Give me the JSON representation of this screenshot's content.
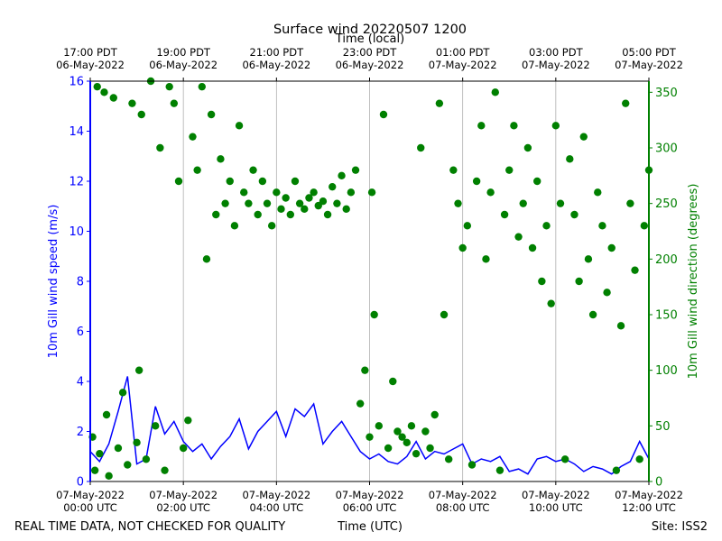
{
  "chart_data": {
    "type": "line",
    "title": "Surface wind 20220507 1200",
    "x2label": "Time (local)",
    "xlabel": "Time (UTC)",
    "ylabel": "10m Gill wind speed (m/s)",
    "y2label": "10m Gill wind direction (degrees)",
    "footer_left": "REAL TIME DATA, NOT CHECKED FOR QUALITY",
    "footer_right": "Site: ISS2",
    "xlim": [
      0,
      12
    ],
    "xticks": [
      {
        "value": 0,
        "label": "07-May-2022\n00:00 UTC"
      },
      {
        "value": 2,
        "label": "07-May-2022\n02:00 UTC"
      },
      {
        "value": 4,
        "label": "07-May-2022\n04:00 UTC"
      },
      {
        "value": 6,
        "label": "07-May-2022\n06:00 UTC"
      },
      {
        "value": 8,
        "label": "07-May-2022\n08:00 UTC"
      },
      {
        "value": 10,
        "label": "07-May-2022\n10:00 UTC"
      },
      {
        "value": 12,
        "label": "07-May-2022\n12:00 UTC"
      }
    ],
    "x2ticks": [
      {
        "value": 0,
        "label": "17:00 PDT\n06-May-2022"
      },
      {
        "value": 2,
        "label": "19:00 PDT\n06-May-2022"
      },
      {
        "value": 4,
        "label": "21:00 PDT\n06-May-2022"
      },
      {
        "value": 6,
        "label": "23:00 PDT\n06-May-2022"
      },
      {
        "value": 8,
        "label": "01:00 PDT\n07-May-2022"
      },
      {
        "value": 10,
        "label": "03:00 PDT\n07-May-2022"
      },
      {
        "value": 12,
        "label": "05:00 PDT\n07-May-2022"
      }
    ],
    "ylim": [
      0,
      16
    ],
    "yticks": [
      0,
      2,
      4,
      6,
      8,
      10,
      12,
      14,
      16
    ],
    "y2lim": [
      0,
      360
    ],
    "y2ticks": [
      0,
      50,
      100,
      150,
      200,
      250,
      300,
      350
    ],
    "grid": true,
    "series": [
      {
        "type": "line",
        "color": "#0000ff",
        "x": [
          0,
          0.2,
          0.4,
          0.6,
          0.8,
          1,
          1.2,
          1.4,
          1.6,
          1.8,
          2,
          2.2,
          2.4,
          2.6,
          2.8,
          3,
          3.2,
          3.4,
          3.6,
          3.8,
          4,
          4.2,
          4.4,
          4.6,
          4.8,
          5,
          5.2,
          5.4,
          5.6,
          5.8,
          6,
          6.2,
          6.4,
          6.6,
          6.8,
          7,
          7.2,
          7.4,
          7.6,
          7.8,
          8,
          8.2,
          8.4,
          8.6,
          8.8,
          9,
          9.2,
          9.4,
          9.6,
          9.8,
          10,
          10.2,
          10.4,
          10.6,
          10.8,
          11,
          11.2,
          11.4,
          11.6,
          11.8,
          12
        ],
        "values": [
          1.2,
          0.8,
          1.5,
          2.8,
          4.2,
          0.7,
          0.9,
          3.0,
          1.9,
          2.4,
          1.6,
          1.2,
          1.5,
          0.9,
          1.4,
          1.8,
          2.5,
          1.3,
          2.0,
          2.4,
          2.8,
          1.8,
          2.9,
          2.6,
          3.1,
          1.5,
          2.0,
          2.4,
          1.8,
          1.2,
          0.9,
          1.1,
          0.8,
          0.7,
          1.0,
          1.6,
          0.9,
          1.2,
          1.1,
          1.3,
          1.5,
          0.7,
          0.9,
          0.8,
          1.0,
          0.4,
          0.5,
          0.3,
          0.9,
          1.0,
          0.8,
          0.9,
          0.7,
          0.4,
          0.6,
          0.5,
          0.3,
          0.6,
          0.8,
          1.6,
          0.9
        ]
      },
      {
        "type": "scatter",
        "color": "#008000",
        "axis": "y2",
        "x": [
          0.05,
          0.1,
          0.15,
          0.2,
          0.3,
          0.35,
          0.4,
          0.5,
          0.6,
          0.7,
          0.8,
          0.9,
          1.0,
          1.05,
          1.1,
          1.2,
          1.3,
          1.4,
          1.5,
          1.6,
          1.7,
          1.8,
          1.9,
          2.0,
          2.1,
          2.2,
          2.3,
          2.4,
          2.5,
          2.6,
          2.7,
          2.8,
          2.9,
          3.0,
          3.1,
          3.2,
          3.3,
          3.4,
          3.5,
          3.6,
          3.7,
          3.8,
          3.9,
          4.0,
          4.1,
          4.2,
          4.3,
          4.4,
          4.5,
          4.6,
          4.7,
          4.8,
          4.9,
          5.0,
          5.1,
          5.2,
          5.3,
          5.4,
          5.5,
          5.6,
          5.7,
          5.8,
          5.9,
          6.0,
          6.05,
          6.1,
          6.2,
          6.3,
          6.4,
          6.5,
          6.6,
          6.7,
          6.8,
          6.9,
          7.0,
          7.1,
          7.2,
          7.3,
          7.4,
          7.5,
          7.6,
          7.7,
          7.8,
          7.9,
          8.0,
          8.1,
          8.2,
          8.3,
          8.4,
          8.5,
          8.6,
          8.7,
          8.8,
          8.9,
          9.0,
          9.1,
          9.2,
          9.3,
          9.4,
          9.5,
          9.6,
          9.7,
          9.8,
          9.9,
          10.0,
          10.1,
          10.2,
          10.3,
          10.4,
          10.5,
          10.6,
          10.7,
          10.8,
          10.9,
          11.0,
          11.1,
          11.2,
          11.3,
          11.4,
          11.5,
          11.6,
          11.7,
          11.8,
          11.9,
          12.0
        ],
        "values": [
          40,
          10,
          355,
          25,
          350,
          60,
          5,
          345,
          30,
          80,
          15,
          340,
          35,
          100,
          330,
          20,
          360,
          50,
          300,
          10,
          355,
          340,
          270,
          30,
          55,
          310,
          280,
          355,
          200,
          330,
          240,
          290,
          250,
          270,
          230,
          320,
          260,
          250,
          280,
          240,
          270,
          250,
          230,
          260,
          245,
          255,
          240,
          270,
          250,
          245,
          255,
          260,
          248,
          252,
          240,
          265,
          250,
          275,
          245,
          260,
          280,
          70,
          100,
          40,
          260,
          150,
          50,
          330,
          30,
          90,
          45,
          40,
          35,
          50,
          25,
          300,
          45,
          30,
          60,
          340,
          150,
          20,
          280,
          250,
          210,
          230,
          15,
          270,
          320,
          200,
          260,
          350,
          10,
          240,
          280,
          320,
          220,
          250,
          300,
          210,
          270,
          180,
          230,
          160,
          320,
          250,
          20,
          290,
          240,
          180,
          310,
          200,
          150,
          260,
          230,
          170,
          210,
          10,
          140,
          340,
          250,
          190,
          20,
          230,
          280
        ]
      }
    ]
  }
}
